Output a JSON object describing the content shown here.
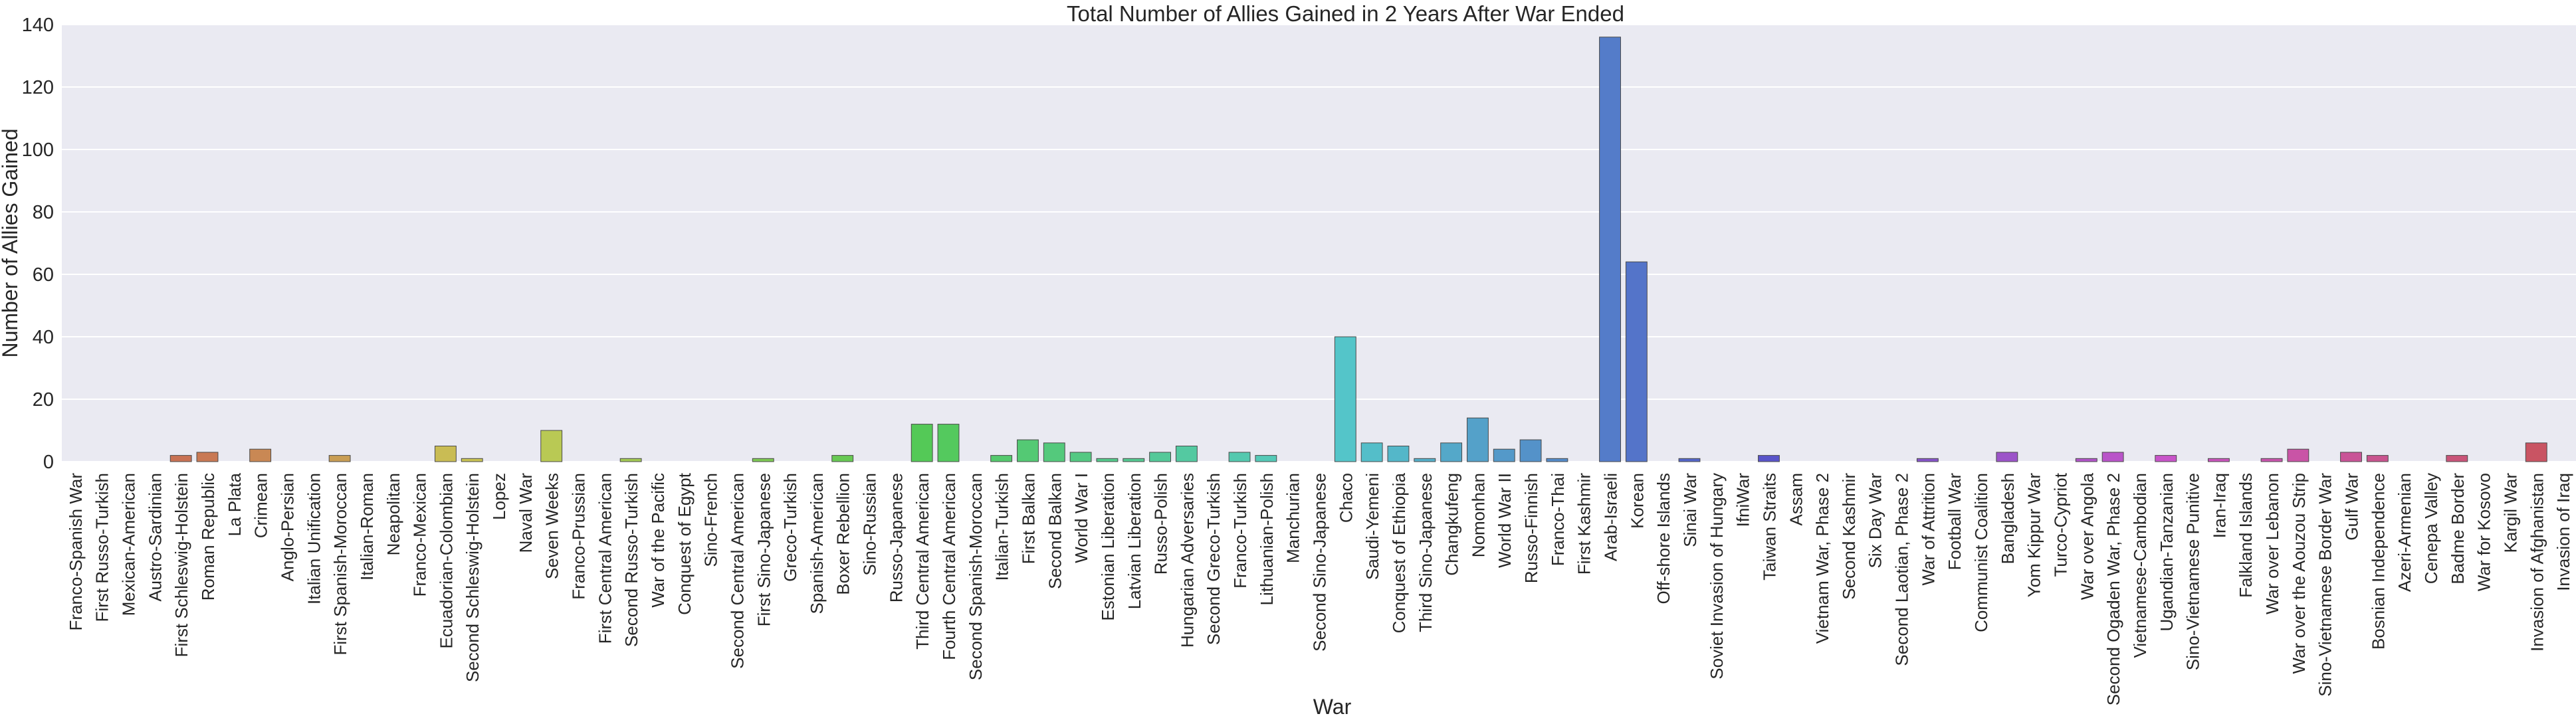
{
  "chart_data": {
    "type": "bar",
    "title": "Total Number of Allies Gained in 2 Years After War Ended",
    "xlabel": "War",
    "ylabel": "Number of Allies Gained",
    "ylim": [
      0,
      140
    ],
    "yticks": [
      0,
      20,
      40,
      60,
      80,
      100,
      120,
      140
    ],
    "grid": true,
    "legend": "none",
    "background_color": "#eaeaf2",
    "grid_color": "#ffffff",
    "categories": [
      "Franco-Spanish War",
      "First Russo-Turkish",
      "Mexican-American",
      "Austro-Sardinian",
      "First Schleswig-Holstein",
      "Roman Republic",
      "La Plata",
      "Crimean",
      "Anglo-Persian",
      "Italian Unification",
      "First Spanish-Moroccan",
      "Italian-Roman",
      "Neapolitan",
      "Franco-Mexican",
      "Ecuadorian-Colombian",
      "Second Schleswig-Holstein",
      "Lopez",
      "Naval War",
      "Seven Weeks",
      "Franco-Prussian",
      "First Central American",
      "Second Russo-Turkish",
      "War of the Pacific",
      "Conquest of Egypt",
      "Sino-French",
      "Second Central American",
      "First Sino-Japanese",
      "Greco-Turkish",
      "Spanish-American",
      "Boxer Rebellion",
      "Sino-Russian",
      "Russo-Japanese",
      "Third Central American",
      "Fourth Central American",
      "Second Spanish-Moroccan",
      "Italian-Turkish",
      "First Balkan",
      "Second Balkan",
      "World War I",
      "Estonian Liberation",
      "Latvian Liberation",
      "Russo-Polish",
      "Hungarian Adversaries",
      "Second Greco-Turkish",
      "Franco-Turkish",
      "Lithuanian-Polish",
      "Manchurian",
      "Second Sino-Japanese",
      "Chaco",
      "Saudi-Yemeni",
      "Conquest of Ethiopia",
      "Third Sino-Japanese",
      "Changkufeng",
      "Nomonhan",
      "World War II",
      "Russo-Finnish",
      "Franco-Thai",
      "First Kashmir",
      "Arab-Israeli",
      "Korean",
      "Off-shore Islands",
      "Sinai War",
      "Soviet Invasion of Hungary",
      "IfniWar",
      "Taiwan Straits",
      "Assam",
      "Vietnam War, Phase 2",
      "Second Kashmir",
      "Six Day War",
      "Second Laotian, Phase 2",
      "War of Attrition",
      "Football War",
      "Communist Coalition",
      "Bangladesh",
      "Yom Kippur War",
      "Turco-Cypriot",
      "War over Angola",
      "Second Ogaden War, Phase 2",
      "Vietnamese-Cambodian",
      "Ugandian-Tanzanian",
      "Sino-Vietnamese Punitive",
      "Iran-Iraq",
      "Falkland Islands",
      "War over Lebanon",
      "War over the Aouzou Strip",
      "Sino-Vietnamese Border War",
      "Gulf War",
      "Bosnian Independence",
      "Azeri-Armenian",
      "Cenepa Valley",
      "Badme Border",
      "War for Kosovo",
      "Kargil War",
      "Invasion of Afghanistan",
      "Invasion of Iraq"
    ],
    "values": [
      0,
      0,
      0,
      0,
      2,
      3,
      0,
      4,
      0,
      0,
      2,
      0,
      0,
      0,
      5,
      1,
      0,
      0,
      10,
      0,
      0,
      1,
      0,
      0,
      0,
      0,
      1,
      0,
      0,
      2,
      0,
      0,
      12,
      12,
      0,
      2,
      7,
      6,
      3,
      1,
      1,
      3,
      5,
      0,
      3,
      2,
      0,
      0,
      40,
      6,
      5,
      1,
      6,
      14,
      4,
      7,
      1,
      0,
      136,
      64,
      0,
      1,
      0,
      0,
      2,
      0,
      0,
      0,
      0,
      0,
      1,
      0,
      0,
      3,
      0,
      0,
      1,
      3,
      0,
      2,
      0,
      1,
      0,
      1,
      4,
      0,
      3,
      2,
      0,
      0,
      2,
      0,
      0,
      6,
      0
    ]
  }
}
